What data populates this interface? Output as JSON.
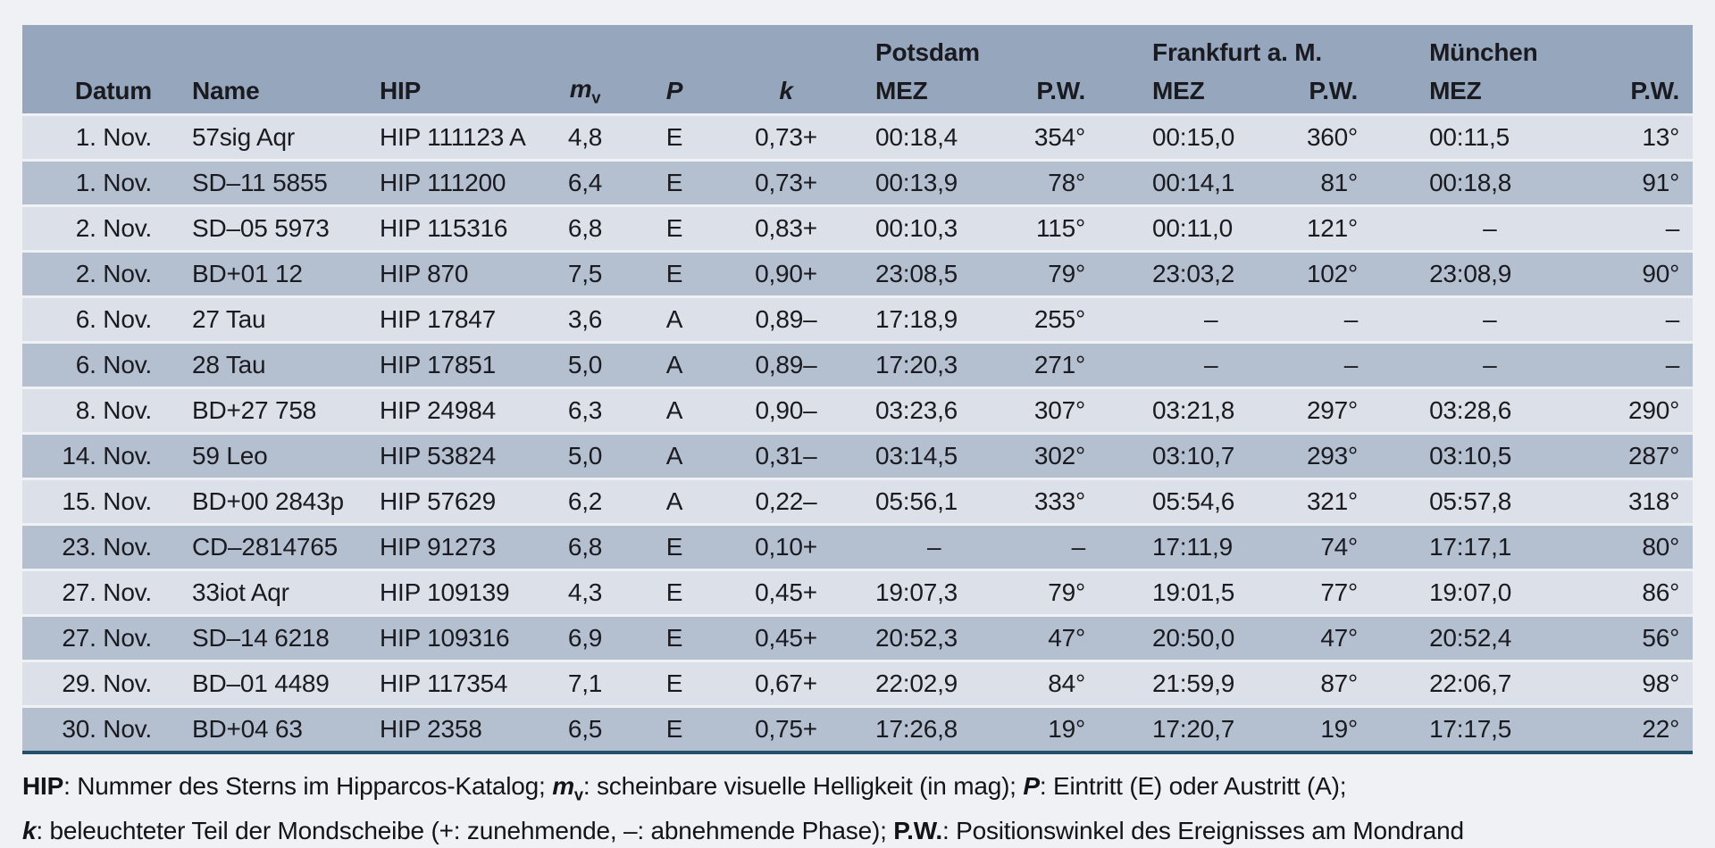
{
  "table": {
    "groups": [
      {
        "label": "Potsdam"
      },
      {
        "label": "Frankfurt a. M."
      },
      {
        "label": "München"
      }
    ],
    "columns": {
      "datum": "Datum",
      "name": "Name",
      "hip": "HIP",
      "mv_main": "m",
      "mv_sub": "v",
      "p": "P",
      "k": "k",
      "mez": "MEZ",
      "pw": "P.W."
    },
    "placeholder_dash": "–",
    "rows": [
      [
        "1. Nov.",
        "57sig Aqr",
        "HIP 111123 A",
        "4,8",
        "E",
        "0,73+",
        "00:18,4",
        "354°",
        "00:15,0",
        "360°",
        "00:11,5",
        "13°"
      ],
      [
        "1. Nov.",
        "SD–11 5855",
        "HIP 111200",
        "6,4",
        "E",
        "0,73+",
        "00:13,9",
        "78°",
        "00:14,1",
        "81°",
        "00:18,8",
        "91°"
      ],
      [
        "2. Nov.",
        "SD–05 5973",
        "HIP 115316",
        "6,8",
        "E",
        "0,83+",
        "00:10,3",
        "115°",
        "00:11,0",
        "121°",
        "–",
        "–"
      ],
      [
        "2. Nov.",
        "BD+01 12",
        "HIP 870",
        "7,5",
        "E",
        "0,90+",
        "23:08,5",
        "79°",
        "23:03,2",
        "102°",
        "23:08,9",
        "90°"
      ],
      [
        "6. Nov.",
        "27 Tau",
        "HIP 17847",
        "3,6",
        "A",
        "0,89–",
        "17:18,9",
        "255°",
        "–",
        "–",
        "–",
        "–"
      ],
      [
        "6. Nov.",
        "28 Tau",
        "HIP 17851",
        "5,0",
        "A",
        "0,89–",
        "17:20,3",
        "271°",
        "–",
        "–",
        "–",
        "–"
      ],
      [
        "8. Nov.",
        "BD+27 758",
        "HIP 24984",
        "6,3",
        "A",
        "0,90–",
        "03:23,6",
        "307°",
        "03:21,8",
        "297°",
        "03:28,6",
        "290°"
      ],
      [
        "14. Nov.",
        "59 Leo",
        "HIP 53824",
        "5,0",
        "A",
        "0,31–",
        "03:14,5",
        "302°",
        "03:10,7",
        "293°",
        "03:10,5",
        "287°"
      ],
      [
        "15. Nov.",
        "BD+00 2843p",
        "HIP 57629",
        "6,2",
        "A",
        "0,22–",
        "05:56,1",
        "333°",
        "05:54,6",
        "321°",
        "05:57,8",
        "318°"
      ],
      [
        "23. Nov.",
        "CD–2814765",
        "HIP 91273",
        "6,8",
        "E",
        "0,10+",
        "–",
        "–",
        "17:11,9",
        "74°",
        "17:17,1",
        "80°"
      ],
      [
        "27. Nov.",
        "33iot Aqr",
        "HIP 109139",
        "4,3",
        "E",
        "0,45+",
        "19:07,3",
        "79°",
        "19:01,5",
        "77°",
        "19:07,0",
        "86°"
      ],
      [
        "27. Nov.",
        "SD–14 6218",
        "HIP 109316",
        "6,9",
        "E",
        "0,45+",
        "20:52,3",
        "47°",
        "20:50,0",
        "47°",
        "20:52,4",
        "56°"
      ],
      [
        "29. Nov.",
        "BD–01 4489",
        "HIP 117354",
        "7,1",
        "E",
        "0,67+",
        "22:02,9",
        "84°",
        "21:59,9",
        "87°",
        "22:06,7",
        "98°"
      ],
      [
        "30. Nov.",
        "BD+04 63",
        "HIP 2358",
        "6,5",
        "E",
        "0,75+",
        "17:26,8",
        "19°",
        "17:20,7",
        "19°",
        "17:17,5",
        "22°"
      ]
    ]
  },
  "footnote": {
    "line1": [
      {
        "text": "HIP",
        "style": "b"
      },
      {
        "text": ": Nummer des Sterns im Hipparcos-Katalog; ",
        "style": "n"
      },
      {
        "text": "m",
        "style": "bi"
      },
      {
        "text": "v",
        "style": "bsub"
      },
      {
        "text": ": scheinbare visuelle Helligkeit (in mag); ",
        "style": "n"
      },
      {
        "text": "P",
        "style": "bi"
      },
      {
        "text": ": Eintritt (E) oder Austritt (A);",
        "style": "n"
      }
    ],
    "line2": [
      {
        "text": "k",
        "style": "bi"
      },
      {
        "text": ": beleuchteter Teil der Mondscheibe (+: zunehmende, –: abnehmende Phase); ",
        "style": "n"
      },
      {
        "text": "P.W.",
        "style": "b"
      },
      {
        "text": ": Positionswinkel des Ereignisses am Mondrand",
        "style": "n"
      }
    ]
  }
}
